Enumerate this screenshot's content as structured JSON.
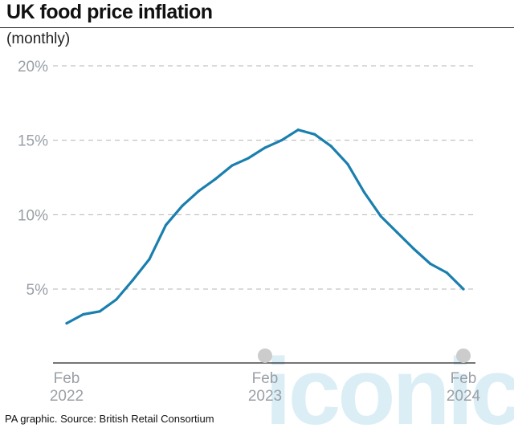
{
  "header": {
    "title": "UK food price inflation",
    "subtitle": "(monthly)"
  },
  "footer": {
    "source": "PA graphic. Source: British Retail Consortium"
  },
  "watermark": {
    "text": "iconic",
    "color": "#dbeef6"
  },
  "colors": {
    "line": "#1a7fae",
    "grid": "#b5b5b5",
    "tick_text": "#9aa0a6",
    "marker": "#cccccc"
  },
  "chart_data": {
    "type": "line",
    "title": "UK food price inflation",
    "subtitle": "(monthly)",
    "y_ticks": [
      "5%",
      "10%",
      "15%",
      "20%"
    ],
    "y_tick_values": [
      5,
      10,
      15,
      20
    ],
    "ylim": [
      0,
      20
    ],
    "x_ticks": [
      {
        "label_line1": "Feb",
        "label_line2": "2022",
        "month_index": 0
      },
      {
        "label_line1": "Feb",
        "label_line2": "2023",
        "month_index": 12
      },
      {
        "label_line1": "Feb",
        "label_line2": "2024",
        "month_index": 24
      }
    ],
    "marker_month_indices": [
      12,
      24
    ],
    "grid": "horizontal dashed",
    "series": [
      {
        "x": [
          "2022-02",
          "2022-03",
          "2022-04",
          "2022-05",
          "2022-06",
          "2022-07",
          "2022-08",
          "2022-09",
          "2022-10",
          "2022-11",
          "2022-12",
          "2023-01",
          "2023-02",
          "2023-03",
          "2023-04",
          "2023-05",
          "2023-06",
          "2023-07",
          "2023-08",
          "2023-09",
          "2023-10",
          "2023-11",
          "2023-12",
          "2024-01",
          "2024-02"
        ],
        "values": [
          2.7,
          3.3,
          3.5,
          4.3,
          5.6,
          7.0,
          9.3,
          10.6,
          11.6,
          12.4,
          13.3,
          13.8,
          14.5,
          15.0,
          15.7,
          15.4,
          14.6,
          13.4,
          11.5,
          9.9,
          8.8,
          7.7,
          6.7,
          6.1,
          5.0
        ]
      }
    ]
  }
}
